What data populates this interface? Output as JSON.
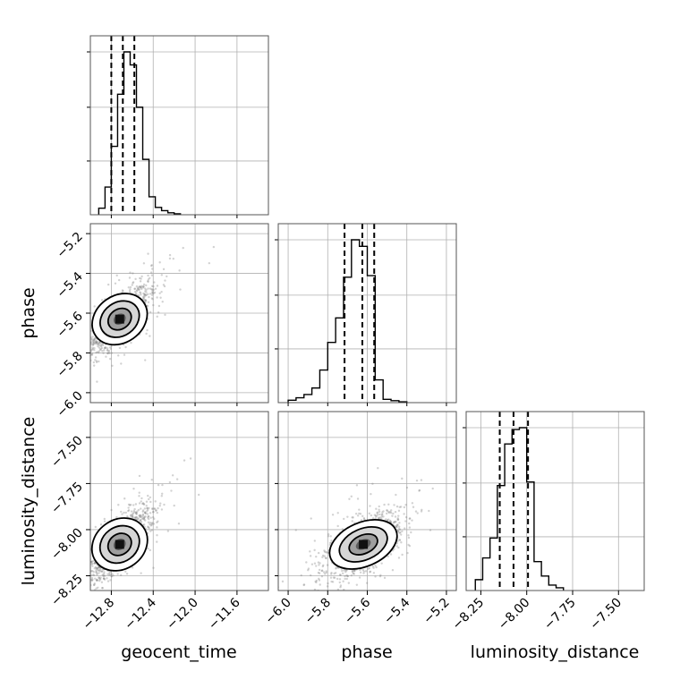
{
  "chart_data": {
    "type": "corner",
    "parameters": [
      "geocent_time",
      "phase",
      "luminosity_distance"
    ],
    "xlabels": [
      "geocent_time",
      "phase",
      "luminosity_distance"
    ],
    "ylabels": [
      "",
      "phase",
      "luminosity_distance"
    ],
    "grid": true,
    "ticks": {
      "geocent_time": {
        "values": [
          -12.8,
          -12.4,
          -12.0,
          -11.6
        ],
        "labels": [
          "−12.8",
          "−12.4",
          "−12.0",
          "−11.6"
        ]
      },
      "phase": {
        "values": [
          -6.0,
          -5.8,
          -5.6,
          -5.4,
          -5.2
        ],
        "labels": [
          "−6.0",
          "−5.8",
          "−5.6",
          "−5.4",
          "−5.2"
        ]
      },
      "luminosity_distance": {
        "values": [
          -8.25,
          -8.0,
          -7.75,
          -7.5
        ],
        "labels": [
          "−8.25",
          "−8.00",
          "−7.75",
          "−7.50"
        ]
      }
    },
    "ranges": {
      "geocent_time": [
        -13.0,
        -11.3
      ],
      "phase": [
        -6.05,
        -5.15
      ],
      "luminosity_distance": [
        -8.33,
        -7.36
      ]
    },
    "histograms": [
      {
        "parameter": "geocent_time",
        "bin_edges": [
          -12.92,
          -12.86,
          -12.8,
          -12.74,
          -12.68,
          -12.62,
          -12.56,
          -12.5,
          -12.44,
          -12.38,
          -12.32,
          -12.26,
          -12.2,
          -12.14
        ],
        "counts": [
          0.04,
          0.17,
          0.42,
          0.74,
          1.0,
          0.92,
          0.66,
          0.34,
          0.11,
          0.045,
          0.025,
          0.012,
          0.006
        ],
        "quantiles": [
          -12.8,
          -12.69,
          -12.58
        ]
      },
      {
        "parameter": "phase",
        "bin_edges": [
          -6.0,
          -5.96,
          -5.92,
          -5.88,
          -5.84,
          -5.8,
          -5.76,
          -5.72,
          -5.68,
          -5.64,
          -5.6,
          -5.56,
          -5.52,
          -5.48,
          -5.44,
          -5.4
        ],
        "counts": [
          0.015,
          0.03,
          0.05,
          0.09,
          0.2,
          0.37,
          0.52,
          0.77,
          1.0,
          0.96,
          0.78,
          0.14,
          0.02,
          0.012,
          0.005
        ],
        "quantiles": [
          -5.715,
          -5.625,
          -5.565
        ]
      },
      {
        "parameter": "luminosity_distance",
        "bin_edges": [
          -8.28,
          -8.24,
          -8.2,
          -8.16,
          -8.12,
          -8.08,
          -8.04,
          -8.0,
          -7.96,
          -7.92,
          -7.88,
          -7.84,
          -7.8
        ],
        "counts": [
          0.06,
          0.18,
          0.29,
          0.58,
          0.81,
          0.89,
          0.9,
          0.6,
          0.16,
          0.08,
          0.03,
          0.015
        ],
        "quantiles": [
          -8.147,
          -8.072,
          -7.993
        ]
      }
    ],
    "scatter_panels": [
      {
        "x": "geocent_time",
        "y": "phase",
        "center": [
          -12.72,
          -5.63
        ],
        "spread": [
          0.14,
          0.08
        ],
        "correlation": 0.75
      },
      {
        "x": "geocent_time",
        "y": "luminosity_distance",
        "center": [
          -12.72,
          -8.08
        ],
        "spread": [
          0.14,
          0.09
        ],
        "correlation": 0.75
      },
      {
        "x": "phase",
        "y": "luminosity_distance",
        "center": [
          -5.62,
          -8.08
        ],
        "spread": [
          0.09,
          0.08
        ],
        "correlation": 0.6
      }
    ],
    "colors": {
      "line": "#000000",
      "grid": "#b0b0b0",
      "scatter": "#7f7f7f",
      "density": [
        "#d6d6d6",
        "#9e9e9e",
        "#5e5e5e",
        "#111111"
      ]
    }
  }
}
